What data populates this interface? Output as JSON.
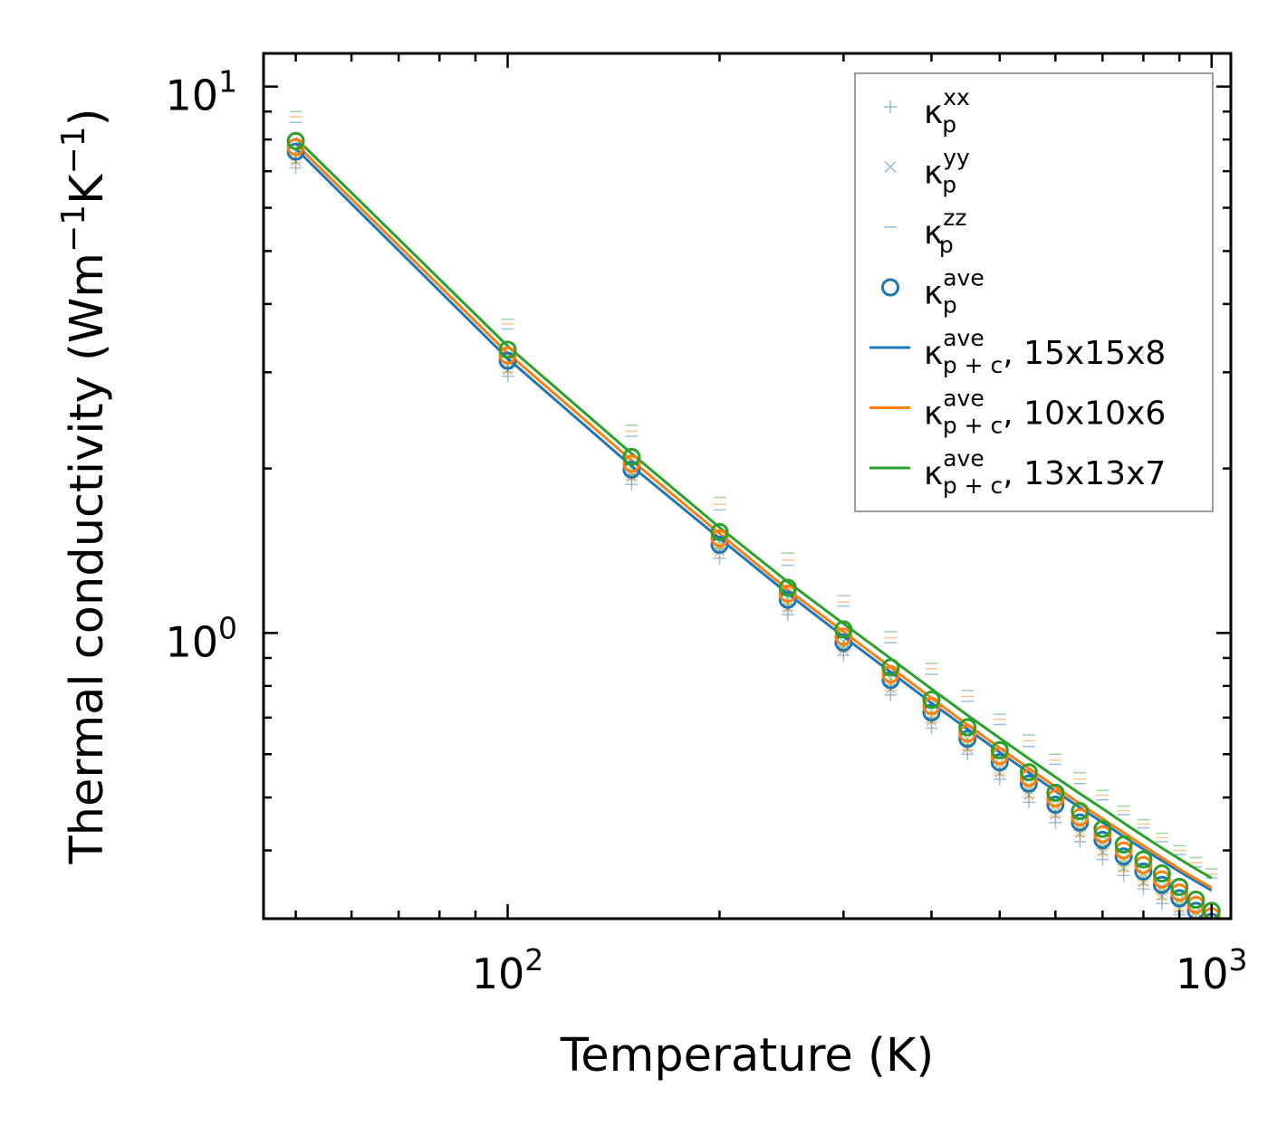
{
  "chart_data": {
    "type": "scatter",
    "title": "",
    "xlabel": "Temperature (K)",
    "ylabel": "Thermal conductivity (Wm",
    "ylabel_unit_parts": [
      "−1",
      "K",
      "−1",
      ")"
    ],
    "xscale": "log",
    "yscale": "log",
    "xlim": [
      45,
      1065
    ],
    "ylim": [
      0.3,
      11.5
    ],
    "x_major_ticks": [
      {
        "value": 100,
        "base": "10",
        "exp": "2"
      },
      {
        "value": 1000,
        "base": "10",
        "exp": "3"
      }
    ],
    "y_major_ticks": [
      {
        "value": 1,
        "base": "10",
        "exp": "0"
      },
      {
        "value": 10,
        "base": "10",
        "exp": "1"
      }
    ],
    "temperatures": [
      50,
      100,
      150,
      200,
      250,
      300,
      350,
      400,
      450,
      500,
      550,
      600,
      650,
      700,
      750,
      800,
      850,
      900,
      950,
      1000
    ],
    "series": [
      {
        "name": "15x15x8",
        "color": "#1f77b4",
        "kxx": [
          7.1,
          2.95,
          1.87,
          1.37,
          1.08,
          0.91,
          0.77,
          0.67,
          0.6,
          0.54,
          0.49,
          0.45,
          0.415,
          0.385,
          0.36,
          0.34,
          0.32,
          0.305,
          0.29,
          0.278
        ],
        "kyy": [
          7.3,
          3.03,
          1.93,
          1.41,
          1.11,
          0.93,
          0.79,
          0.69,
          0.615,
          0.555,
          0.505,
          0.465,
          0.43,
          0.398,
          0.372,
          0.35,
          0.33,
          0.313,
          0.298,
          0.285
        ],
        "kzz": [
          8.6,
          3.6,
          2.29,
          1.68,
          1.33,
          1.12,
          0.96,
          0.84,
          0.75,
          0.68,
          0.62,
          0.575,
          0.53,
          0.495,
          0.465,
          0.44,
          0.415,
          0.393,
          0.373,
          0.356
        ],
        "kave": [
          7.6,
          3.15,
          1.99,
          1.45,
          1.15,
          0.96,
          0.82,
          0.715,
          0.64,
          0.58,
          0.53,
          0.485,
          0.45,
          0.418,
          0.39,
          0.366,
          0.346,
          0.327,
          0.31,
          0.296
        ],
        "kfit": [
          7.7,
          3.18,
          2.02,
          1.49,
          1.18,
          0.985,
          0.848,
          0.745,
          0.667,
          0.605,
          0.555,
          0.514,
          0.479,
          0.45,
          0.424,
          0.402,
          0.383,
          0.366,
          0.351,
          0.338
        ]
      },
      {
        "name": "10x10x6",
        "color": "#ff7f0e",
        "kxx": [
          7.25,
          3.0,
          1.91,
          1.4,
          1.1,
          0.925,
          0.785,
          0.685,
          0.61,
          0.55,
          0.5,
          0.46,
          0.425,
          0.393,
          0.367,
          0.346,
          0.326,
          0.31,
          0.295,
          0.282
        ],
        "kyy": [
          7.45,
          3.08,
          1.97,
          1.44,
          1.13,
          0.945,
          0.805,
          0.7,
          0.625,
          0.565,
          0.515,
          0.472,
          0.437,
          0.405,
          0.378,
          0.356,
          0.336,
          0.318,
          0.303,
          0.29
        ],
        "kzz": [
          8.8,
          3.68,
          2.34,
          1.72,
          1.36,
          1.14,
          0.98,
          0.86,
          0.765,
          0.695,
          0.635,
          0.585,
          0.54,
          0.505,
          0.473,
          0.447,
          0.422,
          0.4,
          0.38,
          0.362
        ],
        "kave": [
          7.75,
          3.22,
          2.04,
          1.49,
          1.18,
          0.985,
          0.84,
          0.735,
          0.655,
          0.595,
          0.543,
          0.498,
          0.46,
          0.428,
          0.4,
          0.376,
          0.354,
          0.335,
          0.318,
          0.303
        ],
        "kfit": [
          7.85,
          3.25,
          2.07,
          1.52,
          1.2,
          1.005,
          0.865,
          0.76,
          0.679,
          0.616,
          0.565,
          0.523,
          0.487,
          0.457,
          0.431,
          0.408,
          0.388,
          0.37,
          0.355,
          0.342
        ]
      },
      {
        "name": "13x13x7",
        "color": "#2ca02c",
        "kxx": [
          7.4,
          3.07,
          1.95,
          1.43,
          1.13,
          0.945,
          0.805,
          0.7,
          0.625,
          0.563,
          0.513,
          0.47,
          0.435,
          0.403,
          0.376,
          0.354,
          0.334,
          0.316,
          0.3,
          0.287
        ],
        "kyy": [
          7.6,
          3.15,
          2.01,
          1.47,
          1.16,
          0.965,
          0.825,
          0.72,
          0.64,
          0.578,
          0.526,
          0.483,
          0.447,
          0.414,
          0.386,
          0.363,
          0.343,
          0.325,
          0.309,
          0.295
        ],
        "kzz": [
          9.0,
          3.75,
          2.4,
          1.77,
          1.4,
          1.17,
          1.005,
          0.88,
          0.785,
          0.71,
          0.65,
          0.6,
          0.555,
          0.515,
          0.482,
          0.455,
          0.43,
          0.408,
          0.388,
          0.37
        ],
        "kave": [
          7.95,
          3.3,
          2.1,
          1.53,
          1.21,
          1.015,
          0.865,
          0.755,
          0.672,
          0.61,
          0.556,
          0.51,
          0.472,
          0.438,
          0.41,
          0.385,
          0.363,
          0.343,
          0.325,
          0.31
        ],
        "kfit": [
          8.05,
          3.35,
          2.13,
          1.56,
          1.24,
          1.04,
          0.898,
          0.79,
          0.707,
          0.642,
          0.589,
          0.545,
          0.508,
          0.477,
          0.449,
          0.425,
          0.404,
          0.386,
          0.37,
          0.356
        ]
      }
    ],
    "legend": {
      "location": "top-right",
      "entries": [
        {
          "marker": "plus",
          "color": "#1f77b4",
          "symbol": "κ",
          "sub": "p",
          "sup": "xx",
          "suffix": ""
        },
        {
          "marker": "cross",
          "color": "#1f77b4",
          "symbol": "κ",
          "sub": "p",
          "sup": "yy",
          "suffix": ""
        },
        {
          "marker": "hline",
          "color": "#1f77b4",
          "symbol": "κ",
          "sub": "p",
          "sup": "zz",
          "suffix": ""
        },
        {
          "marker": "circle",
          "color": "#1f77b4",
          "symbol": "κ",
          "sub": "p",
          "sup": "ave",
          "suffix": ""
        },
        {
          "marker": "line",
          "color": "#1f77b4",
          "symbol": "κ",
          "sub": "p + c",
          "sup": "ave",
          "suffix": ", 15x15x8"
        },
        {
          "marker": "line",
          "color": "#ff7f0e",
          "symbol": "κ",
          "sub": "p + c",
          "sup": "ave",
          "suffix": ", 10x10x6"
        },
        {
          "marker": "line",
          "color": "#2ca02c",
          "symbol": "κ",
          "sub": "p + c",
          "sup": "ave",
          "suffix": ", 13x13x7"
        }
      ]
    }
  }
}
